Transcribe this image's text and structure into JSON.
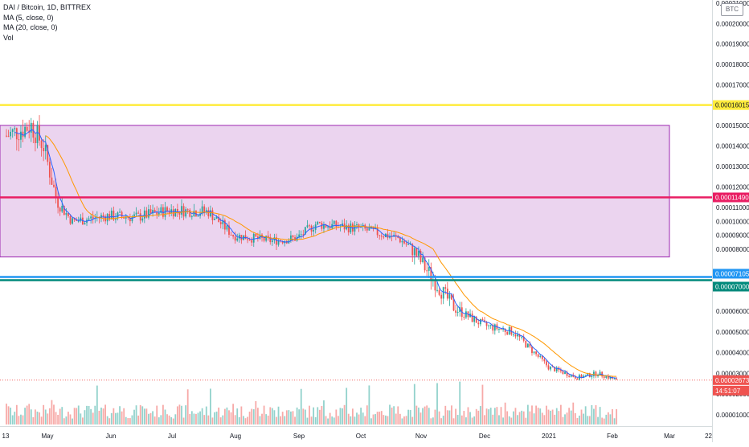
{
  "legend": {
    "symbol": "DAI / Bitcoin, 1D, BITTREX",
    "ma5": "MA (5, close, 0)",
    "ma20": "MA (20, close, 0)",
    "vol": "Vol"
  },
  "unit": "BTC",
  "price_axis": {
    "ticks": [
      {
        "value": 0.00021,
        "label": "0.00021000"
      },
      {
        "value": 0.0002,
        "label": "0.00020000"
      },
      {
        "value": 0.00019,
        "label": "0.00019000"
      },
      {
        "value": 0.00018,
        "label": "0.00018000"
      },
      {
        "value": 0.00017,
        "label": "0.00017000"
      },
      {
        "value": 0.00015,
        "label": "0.00015000"
      },
      {
        "value": 0.00014,
        "label": "0.00014000"
      },
      {
        "value": 0.00013,
        "label": "0.00013000"
      },
      {
        "value": 0.00012,
        "label": "0.00012000"
      },
      {
        "value": 0.00011,
        "label": "0.00011000"
      },
      {
        "value": 0.0001,
        "label": "0.00010000"
      },
      {
        "value": 9e-05,
        "label": "0.00009000"
      },
      {
        "value": 8e-05,
        "label": "0.00008000"
      },
      {
        "value": 6e-05,
        "label": "0.00006000"
      },
      {
        "value": 5e-05,
        "label": "0.00005000"
      },
      {
        "value": 4e-05,
        "label": "0.00004000"
      },
      {
        "value": 3e-05,
        "label": "0.00003000"
      },
      {
        "value": 2e-05,
        "label": "0.00002000"
      },
      {
        "value": 1e-05,
        "label": "0.00001000"
      }
    ]
  },
  "time_axis": [
    "13",
    "May",
    "Jun",
    "Jul",
    "Aug",
    "Sep",
    "Oct",
    "Nov",
    "Dec",
    "2021",
    "Feb",
    "Mar",
    "22"
  ],
  "horizontal_lines": [
    {
      "name": "yellow-level-line",
      "value": 0.00016,
      "color": "#ffeb3b",
      "label": "0.00016015",
      "label_bg": "#ffeb3b",
      "label_color": "#131722"
    },
    {
      "name": "red-level-line",
      "value": 0.0001149,
      "color": "#e91e63",
      "label": "0.00011490",
      "label_bg": "#e91e63",
      "label_color": "#ffffff"
    },
    {
      "name": "blue-level-line",
      "value": 7.105e-05,
      "color": "#2196f3",
      "label": "0.00007105",
      "label_bg": "#2196f3",
      "label_color": "#ffffff"
    },
    {
      "name": "teal-level-line",
      "value": 7e-05,
      "color": "#00897b",
      "label": "0.00007000",
      "label_bg": "#00897b",
      "label_color": "#ffffff"
    }
  ],
  "current_price": {
    "value": 2.673e-05,
    "label": "0.00002673",
    "countdown": "14:51:07",
    "color": "#ef5350"
  },
  "range_box": {
    "top": 0.00015,
    "bottom": 7.75e-05,
    "color": "#9c27b0"
  },
  "chart_data": {
    "type": "candlestick",
    "title": "DAI / Bitcoin, 1D, BITTREX",
    "series": [
      {
        "name": "MA (5, close, 0)",
        "color": "#2962ff"
      },
      {
        "name": "MA (20, close, 0)",
        "color": "#ff9800"
      },
      {
        "name": "Vol"
      }
    ],
    "price_trend": [
      {
        "date": "2020-04-13",
        "close": 0.000145
      },
      {
        "date": "2020-04-25",
        "close": 0.00015
      },
      {
        "date": "2020-05-01",
        "close": 0.00014
      },
      {
        "date": "2020-05-07",
        "close": 0.000115
      },
      {
        "date": "2020-05-15",
        "close": 0.0001
      },
      {
        "date": "2020-06-01",
        "close": 0.000104
      },
      {
        "date": "2020-06-15",
        "close": 0.000103
      },
      {
        "date": "2020-07-01",
        "close": 0.000108
      },
      {
        "date": "2020-07-20",
        "close": 0.000107
      },
      {
        "date": "2020-08-01",
        "close": 9e-05
      },
      {
        "date": "2020-08-20",
        "close": 8.6e-05
      },
      {
        "date": "2020-09-01",
        "close": 8.8e-05
      },
      {
        "date": "2020-09-10",
        "close": 9.8e-05
      },
      {
        "date": "2020-10-01",
        "close": 9.5e-05
      },
      {
        "date": "2020-10-20",
        "close": 8.8e-05
      },
      {
        "date": "2020-11-01",
        "close": 7.5e-05
      },
      {
        "date": "2020-11-15",
        "close": 6.2e-05
      },
      {
        "date": "2020-12-01",
        "close": 5.3e-05
      },
      {
        "date": "2020-12-15",
        "close": 5e-05
      },
      {
        "date": "2021-01-01",
        "close": 3.3e-05
      },
      {
        "date": "2021-01-15",
        "close": 2.8e-05
      },
      {
        "date": "2021-01-25",
        "close": 3e-05
      },
      {
        "date": "2021-02-03",
        "close": 2.67e-05
      }
    ],
    "ylim": [
      5e-06,
      0.000212
    ],
    "xlim": [
      "2020-04-08",
      "2021-03-22"
    ]
  }
}
